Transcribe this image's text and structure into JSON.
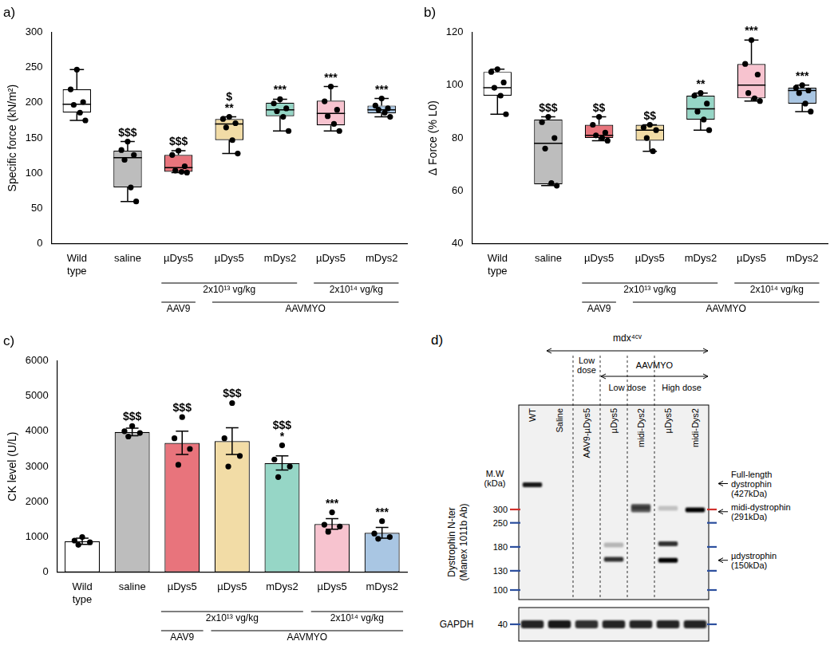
{
  "chart_data": [
    {
      "type": "box",
      "title": "a)",
      "y_label": "Specific force (kN/m²)",
      "categories": [
        "Wild type",
        "saline",
        "µDys5",
        "µDys5",
        "mDys2",
        "µDys5",
        "mDys2"
      ],
      "colors": [
        "#ffffff",
        "#bdbdbd",
        "#e8747c",
        "#f2dca6",
        "#96d6c6",
        "#f7c3cf",
        "#a9c6e3"
      ],
      "boxes": [
        {
          "min": 175,
          "q1": 186,
          "median": 198,
          "q3": 219,
          "max": 247,
          "points": [
            247,
            219,
            201,
            197,
            186,
            175
          ]
        },
        {
          "min": 60,
          "q1": 80,
          "median": 122,
          "q3": 132,
          "max": 145,
          "points": [
            145,
            133,
            126,
            119,
            80,
            60
          ]
        },
        {
          "min": 101,
          "q1": 102,
          "median": 108,
          "q3": 126,
          "max": 132,
          "points": [
            132,
            126,
            110,
            104,
            102,
            101
          ]
        },
        {
          "min": 128,
          "q1": 147,
          "median": 170,
          "q3": 177,
          "max": 180,
          "points": [
            180,
            177,
            171,
            165,
            147,
            128
          ]
        },
        {
          "min": 160,
          "q1": 181,
          "median": 190,
          "q3": 200,
          "max": 205,
          "points": [
            205,
            199,
            192,
            188,
            180,
            160
          ]
        },
        {
          "min": 160,
          "q1": 168,
          "median": 185,
          "q3": 203,
          "max": 223,
          "points": [
            223,
            202,
            190,
            181,
            170,
            160
          ]
        },
        {
          "min": 180,
          "q1": 185,
          "median": 190,
          "q3": 196,
          "max": 206,
          "points": [
            206,
            196,
            192,
            190,
            186,
            180
          ]
        }
      ],
      "annotations": [
        null,
        [
          "$$$"
        ],
        [
          "$$$"
        ],
        [
          "$",
          "**"
        ],
        [
          "***"
        ],
        [
          "***"
        ],
        [
          "***"
        ]
      ],
      "category_groups": [
        [
          {
            "label": "2x10¹³ vg/kg",
            "first": 2,
            "last": 4
          },
          {
            "label": "2x10¹⁴ vg/kg",
            "first": 5,
            "last": 6
          }
        ],
        [
          {
            "label": "AAV9",
            "first": 2,
            "last": 2
          },
          {
            "label": "AAVMYO",
            "first": 3,
            "last": 6
          }
        ]
      ],
      "ylim": [
        0,
        300
      ],
      "yticks": [
        0,
        50,
        100,
        150,
        200,
        250,
        300
      ],
      "grid": false
    },
    {
      "type": "box",
      "title": "b)",
      "y_label": "Δ Force (% L0)",
      "categories": [
        "Wild type",
        "saline",
        "µDys5",
        "µDys5",
        "mDys2",
        "µDys5",
        "mDys2"
      ],
      "colors": [
        "#ffffff",
        "#bdbdbd",
        "#e8747c",
        "#f2dca6",
        "#96d6c6",
        "#f7c3cf",
        "#a9c6e3"
      ],
      "boxes": [
        {
          "min": 89,
          "q1": 96,
          "median": 99,
          "q3": 105,
          "max": 106,
          "points": [
            106,
            105,
            101,
            99,
            96,
            89
          ]
        },
        {
          "min": 62,
          "q1": 62.5,
          "median": 78,
          "q3": 87,
          "max": 88,
          "points": [
            88,
            86,
            80,
            76,
            63,
            62
          ]
        },
        {
          "min": 79,
          "q1": 80,
          "median": 81,
          "q3": 85,
          "max": 88,
          "points": [
            88,
            85,
            82,
            81,
            80,
            79
          ]
        },
        {
          "min": 75,
          "q1": 79,
          "median": 83,
          "q3": 85,
          "max": 85,
          "points": [
            85,
            84,
            83,
            80,
            75
          ]
        },
        {
          "min": 83,
          "q1": 87,
          "median": 91,
          "q3": 96,
          "max": 97,
          "points": [
            97,
            96,
            93,
            90,
            87,
            83
          ]
        },
        {
          "min": 94,
          "q1": 95,
          "median": 100,
          "q3": 108,
          "max": 117,
          "points": [
            117,
            108,
            104,
            97,
            95,
            94
          ]
        },
        {
          "min": 90,
          "q1": 93,
          "median": 98,
          "q3": 99,
          "max": 100,
          "points": [
            100,
            99,
            98,
            97,
            93,
            90
          ]
        }
      ],
      "annotations": [
        null,
        [
          "$$$"
        ],
        [
          "$$"
        ],
        [
          "$$"
        ],
        [
          "**"
        ],
        [
          "***"
        ],
        [
          "***"
        ]
      ],
      "category_groups": [
        [
          {
            "label": "2x10¹³ vg/kg",
            "first": 2,
            "last": 4
          },
          {
            "label": "2x10¹⁴ vg/kg",
            "first": 5,
            "last": 6
          }
        ],
        [
          {
            "label": "AAV9",
            "first": 2,
            "last": 2
          },
          {
            "label": "AAVMYO",
            "first": 3,
            "last": 6
          }
        ]
      ],
      "ylim": [
        40,
        120
      ],
      "yticks": [
        40,
        60,
        80,
        100,
        120
      ],
      "grid": false
    },
    {
      "type": "bar",
      "title": "c)",
      "y_label": "CK level (U/L)",
      "categories": [
        "Wild type",
        "saline",
        "µDys5",
        "µDys5",
        "mDys2",
        "µDys5",
        "mDys2"
      ],
      "colors": [
        "#ffffff",
        "#bdbdbd",
        "#e8747c",
        "#f2dca6",
        "#96d6c6",
        "#f7c3cf",
        "#a9c6e3"
      ],
      "values": [
        880,
        3980,
        3670,
        3720,
        3100,
        1370,
        1120
      ],
      "errors": [
        90,
        110,
        330,
        380,
        200,
        150,
        150
      ],
      "points": [
        [
          1000,
          900,
          850,
          780
        ],
        [
          4150,
          4000,
          3950,
          3850
        ],
        [
          4400,
          3800,
          3500,
          3050
        ],
        [
          4800,
          3800,
          3300,
          3000
        ],
        [
          3600,
          3200,
          3000,
          2700
        ],
        [
          1700,
          1350,
          1300,
          1150
        ],
        [
          1450,
          1100,
          1000,
          950
        ]
      ],
      "annotations": [
        null,
        [
          "$$$"
        ],
        [
          "$$$"
        ],
        [
          "$$$"
        ],
        [
          "$$$",
          "*"
        ],
        [
          "***"
        ],
        [
          "***"
        ]
      ],
      "category_groups": [
        [
          {
            "label": "2x10¹³ vg/kg",
            "first": 2,
            "last": 4
          },
          {
            "label": "2x10¹⁴ vg/kg",
            "first": 5,
            "last": 6
          }
        ],
        [
          {
            "label": "AAV9",
            "first": 2,
            "last": 2
          },
          {
            "label": "AAVMYO",
            "first": 3,
            "last": 6
          }
        ]
      ],
      "ylim": [
        0,
        6000
      ],
      "yticks": [
        0,
        1000,
        2000,
        3000,
        4000,
        5000,
        6000
      ],
      "grid": false
    }
  ],
  "western_blot": {
    "title": "d)",
    "header": {
      "label": "mdx⁴ᶜᵛ",
      "first": 1,
      "last": 6
    },
    "group_rows": [
      [
        {
          "label": [
            "Low",
            "dose"
          ],
          "first": 2,
          "last": 2
        },
        {
          "label": [
            "AAVMYO"
          ],
          "first": 3,
          "last": 6
        }
      ],
      [
        {
          "label": [
            "Low dose"
          ],
          "first": 3,
          "last": 4
        },
        {
          "label": [
            "High dose"
          ],
          "first": 5,
          "last": 6
        }
      ]
    ],
    "lanes": [
      "WT",
      "Saline",
      "AAV9-µDys5",
      "µDys5",
      "midi-Dys2",
      "µDys5",
      "midi-Dys2"
    ],
    "separators_after": [
      1,
      2,
      3,
      4
    ],
    "y_label": [
      "Dystrophin N-ter",
      "(Manex 1011b Ab)"
    ],
    "mw_label": [
      "M.W",
      "(kDa)"
    ],
    "kda_lim": [
      100,
      500
    ],
    "markers": [
      {
        "value": 300,
        "color": "#d0312d"
      },
      {
        "value": 250,
        "color": "#2c4f9e"
      },
      {
        "value": 180,
        "color": "#2c4f9e"
      },
      {
        "value": 130,
        "color": "#2c4f9e"
      },
      {
        "value": 100,
        "color": "#2c4f9e"
      }
    ],
    "bands": [
      {
        "lane": 0,
        "kda": 420,
        "intensity": 0.9
      },
      {
        "lane": 3,
        "kda": 185,
        "intensity": 0.25
      },
      {
        "lane": 3,
        "kda": 152,
        "intensity": 0.8
      },
      {
        "lane": 4,
        "kda": 312,
        "intensity": 0.7
      },
      {
        "lane": 4,
        "kda": 298,
        "intensity": 0.65
      },
      {
        "lane": 5,
        "kda": 305,
        "intensity": 0.2
      },
      {
        "lane": 5,
        "kda": 188,
        "intensity": 0.8
      },
      {
        "lane": 5,
        "kda": 150,
        "intensity": 1
      },
      {
        "lane": 6,
        "kda": 298,
        "intensity": 1
      }
    ],
    "right_labels": [
      {
        "label": [
          "Full-length",
          "dystrophin",
          "(427kDa)"
        ],
        "kda": 427
      },
      {
        "label": [
          "midi-dystrophin",
          "(291kDa)"
        ],
        "kda": 291
      },
      {
        "label": [
          "µdystrophin",
          "(150kDa)"
        ],
        "kda": 150
      }
    ],
    "gapdh": {
      "label": "GAPDH",
      "marker": {
        "value": 40,
        "color": "#2c4f9e"
      },
      "intensity": [
        0.85,
        0.9,
        0.8,
        0.85,
        0.85,
        0.85,
        0.85
      ]
    }
  }
}
